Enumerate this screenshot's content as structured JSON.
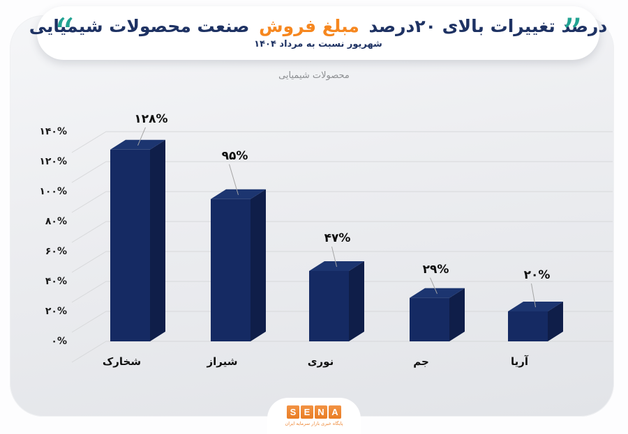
{
  "header": {
    "quote_left_glyph": "“",
    "quote_right_glyph": "”",
    "title_lead": "درصد تغییرات بالای ۲۰درصد",
    "title_highlight": "مبلغ فروش",
    "title_tail": "صنعت محصولات شیمیایی",
    "subtitle": "شهریور نسبت به مرداد ۱۴۰۴"
  },
  "chart_data": {
    "type": "bar",
    "style": "3d-column",
    "title": "محصولات شیمیایی",
    "categories": [
      "شخارک",
      "شیراز",
      "نوری",
      "جم",
      "آریا"
    ],
    "values": [
      128,
      95,
      47,
      29,
      20
    ],
    "value_labels": [
      "۱۲۸%",
      "۹۵%",
      "۴۷%",
      "۲۹%",
      "۲۰%"
    ],
    "y_tick_labels": [
      "۰%",
      "۲۰%",
      "۴۰%",
      "۶۰%",
      "۸۰%",
      "۱۰۰%",
      "۱۲۰%",
      "۱۴۰%"
    ],
    "ylim": [
      0,
      140
    ],
    "y_step": 20,
    "grid": true,
    "legend": false,
    "xlabel": "",
    "ylabel": ""
  },
  "colors": {
    "accent_orange": "#f6871f",
    "title_navy": "#1e3263",
    "quote_teal": "#22a392",
    "bar_front": "#152a63",
    "bar_top": "#1c3570",
    "bar_side": "#0f1e49",
    "grid_line": "#d7d8da",
    "leader_line": "#a5a5a5",
    "logo_orange": "#ee8430"
  },
  "footer": {
    "logo_letters": [
      "S",
      "E",
      "N",
      "A"
    ],
    "tagline": "پایگاه خبری بازار سرمایه ایران"
  }
}
